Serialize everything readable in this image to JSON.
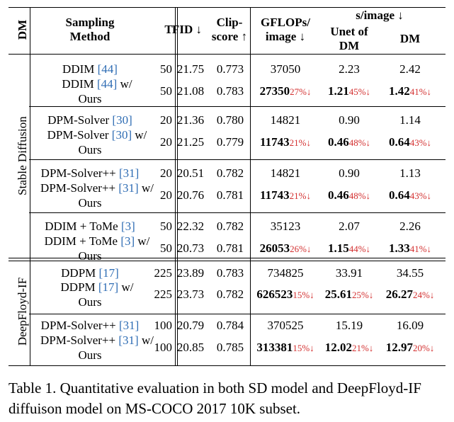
{
  "header": {
    "dm": "DM",
    "method": [
      "Sampling",
      "Method"
    ],
    "t": "T",
    "fid": "FID ↓",
    "clip": [
      "Clip-",
      "score ↑"
    ],
    "gflops": [
      "GFLOPs/",
      "image ↓"
    ],
    "simage": "s/image ↓",
    "unet": [
      "Unet of",
      "DM"
    ],
    "dmcol": "DM"
  },
  "groups": [
    {
      "dm": "Stable Diffusion"
    },
    {
      "dm": "DeepFloyd-IF"
    }
  ],
  "rows": [
    {
      "m1": "DDIM ",
      "ref": "[44]",
      "m2": "",
      "t": "50",
      "fid": "21.75",
      "clip": "0.773",
      "gf": "37050",
      "gfp": "",
      "un": "2.23",
      "unp": "",
      "dm": "2.42",
      "dmp": ""
    },
    {
      "m1": "DDIM ",
      "ref": "[44]",
      "m2": " w/",
      "m3": "Ours",
      "t": "50",
      "fid": "21.08",
      "clip": "0.783",
      "gf": "27350",
      "gfp": "27%↓",
      "un": "1.21",
      "unp": "45%↓",
      "dm": "1.42",
      "dmp": "41%↓"
    },
    {
      "m1": "DPM-Solver ",
      "ref": "[30]",
      "m2": "",
      "t": "20",
      "fid": "21.36",
      "clip": "0.780",
      "gf": "14821",
      "gfp": "",
      "un": "0.90",
      "unp": "",
      "dm": "1.14",
      "dmp": ""
    },
    {
      "m1": "DPM-Solver ",
      "ref": "[30]",
      "m2": " w/",
      "m3": "Ours",
      "t": "20",
      "fid": "21.25",
      "clip": "0.779",
      "gf": "11743",
      "gfp": "21%↓",
      "un": "0.46",
      "unp": "48%↓",
      "dm": "0.64",
      "dmp": "43%↓"
    },
    {
      "m1": "DPM-Solver++ ",
      "ref": "[31]",
      "m2": "",
      "t": "20",
      "fid": "20.51",
      "clip": "0.782",
      "gf": "14821",
      "gfp": "",
      "un": "0.90",
      "unp": "",
      "dm": "1.13",
      "dmp": ""
    },
    {
      "m1": "DPM-Solver++ ",
      "ref": "[31]",
      "m2": " w/",
      "m3": "Ours",
      "t": "20",
      "fid": "20.76",
      "clip": "0.781",
      "gf": "11743",
      "gfp": "21%↓",
      "un": "0.46",
      "unp": "48%↓",
      "dm": "0.64",
      "dmp": "43%↓"
    },
    {
      "m1": "DDIM + ToMe ",
      "ref": "[3]",
      "m2": "",
      "t": "50",
      "fid": "22.32",
      "clip": "0.782",
      "gf": "35123",
      "gfp": "",
      "un": "2.07",
      "unp": "",
      "dm": "2.26",
      "dmp": ""
    },
    {
      "m1": "DDIM + ToMe ",
      "ref": "[3]",
      "m2": " w/",
      "m3": "Ours",
      "t": "50",
      "fid": "20.73",
      "clip": "0.781",
      "gf": "26053",
      "gfp": "26%↓",
      "un": "1.15",
      "unp": "44%↓",
      "dm": "1.33",
      "dmp": "41%↓"
    },
    {
      "m1": "DDPM ",
      "ref": "[17]",
      "m2": "",
      "t": "225",
      "fid": "23.89",
      "clip": "0.783",
      "gf": "734825",
      "gfp": "",
      "un": "33.91",
      "unp": "",
      "dm": "34.55",
      "dmp": ""
    },
    {
      "m1": "DDPM ",
      "ref": "[17]",
      "m2": " w/",
      "m3": "Ours",
      "t": "225",
      "fid": "23.73",
      "clip": "0.782",
      "gf": "626523",
      "gfp": "15%↓",
      "un": "25.61",
      "unp": "25%↓",
      "dm": "26.27",
      "dmp": "24%↓"
    },
    {
      "m1": "DPM-Solver++ ",
      "ref": "[31]",
      "m2": "",
      "t": "100",
      "fid": "20.79",
      "clip": "0.784",
      "gf": "370525",
      "gfp": "",
      "un": "15.19",
      "unp": "",
      "dm": "16.09",
      "dmp": ""
    },
    {
      "m1": "DPM-Solver++ ",
      "ref": "[31]",
      "m2": " w/",
      "m3": "Ours",
      "t": "100",
      "fid": "20.85",
      "clip": "0.785",
      "gf": "313381",
      "gfp": "15%↓",
      "un": "12.02",
      "unp": "21%↓",
      "dm": "12.97",
      "dmp": "20%↓"
    }
  ],
  "caption": "Table 1. Quantitative evaluation in both SD model and DeepFloyd-IF diffuison model on MS-COCO 2017 10K subset."
}
